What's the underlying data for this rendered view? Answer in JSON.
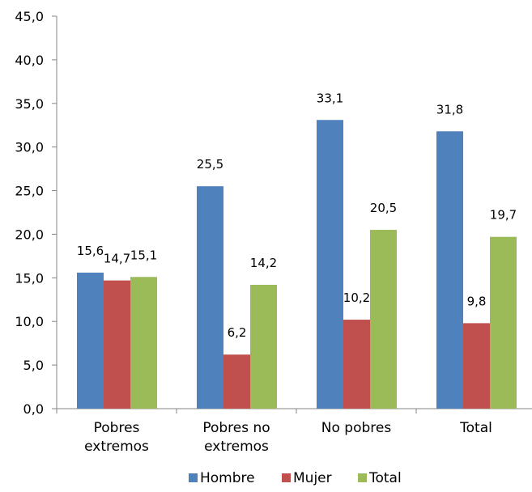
{
  "chart_data": {
    "type": "bar",
    "categories": [
      [
        "Pobres",
        "extremos"
      ],
      [
        "Pobres no",
        "extremos"
      ],
      [
        "No pobres"
      ],
      [
        "Total"
      ]
    ],
    "series": [
      {
        "name": "Hombre",
        "color": "#4F81BD",
        "values": [
          15.6,
          25.5,
          33.1,
          31.8
        ]
      },
      {
        "name": "Mujer",
        "color": "#C0504D",
        "values": [
          14.7,
          6.2,
          10.2,
          9.8
        ]
      },
      {
        "name": "Total",
        "color": "#9BBB59",
        "values": [
          15.1,
          14.2,
          20.5,
          19.7
        ]
      }
    ],
    "ylim": [
      0,
      45
    ],
    "yticks": [
      "0,0",
      "5,0",
      "10,0",
      "15,0",
      "20,0",
      "25,0",
      "30,0",
      "35,0",
      "40,0",
      "45,0"
    ],
    "data_labels": [
      [
        "15,6",
        "25,5",
        "33,1",
        "31,8"
      ],
      [
        "14,7",
        "6,2",
        "10,2",
        "9,8"
      ],
      [
        "15,1",
        "14,2",
        "20,5",
        "19,7"
      ]
    ],
    "grid": false,
    "legend_position": "bottom",
    "title": "",
    "xlabel": "",
    "ylabel": ""
  }
}
